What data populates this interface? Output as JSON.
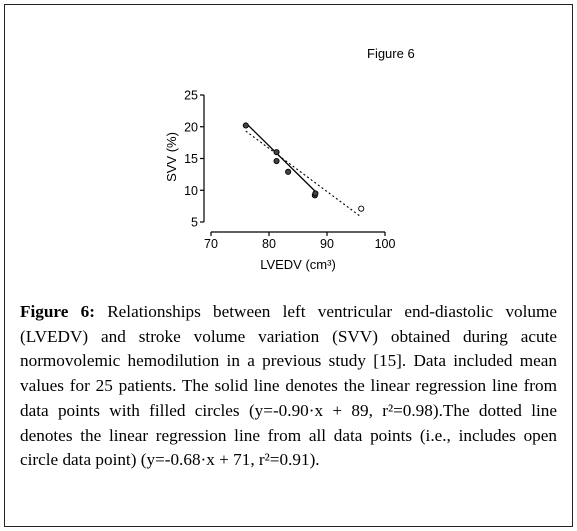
{
  "figure_label": "Figure 6",
  "chart_data": {
    "type": "scatter",
    "xlabel": "LVEDV (cm³)",
    "ylabel": "SVV (%)",
    "xlim": [
      70,
      100
    ],
    "ylim": [
      5,
      25
    ],
    "x_ticks": [
      "70",
      "80",
      "90",
      "100"
    ],
    "y_ticks": [
      "5",
      "10",
      "15",
      "20",
      "25"
    ],
    "grid": false,
    "legend": "none",
    "series": [
      {
        "marker": "filled circle",
        "x": [
          76.0,
          81.3,
          81.3,
          83.3,
          87.9,
          88.0
        ],
        "y": [
          20.2,
          16.0,
          14.6,
          12.9,
          9.2,
          9.5
        ]
      },
      {
        "marker": "open circle",
        "x": [
          95.9
        ],
        "y": [
          7.1
        ]
      }
    ],
    "fits": [
      {
        "style": "solid",
        "slope": -0.9,
        "intercept": 89,
        "x_range": [
          76.0,
          88.0
        ]
      },
      {
        "style": "dotted",
        "slope": -0.68,
        "intercept": 71,
        "x_range": [
          76.0,
          95.9
        ]
      }
    ]
  },
  "caption": {
    "label": "Figure 6:",
    "text": "Relationships between left ventricular end-diastolic volume (LVEDV) and stroke volume variation (SVV) obtained during acute normovolemic hemodilution in a previous study [15]. Data included mean values for 25 patients. The solid line denotes the linear regression line from data points with filled circles (y=-0.90·x + 89, r²=0.98).The dotted line denotes the linear regression line from all data points (i.e., includes open circle data point) (y=-0.68·x + 71, r²=0.91)."
  }
}
